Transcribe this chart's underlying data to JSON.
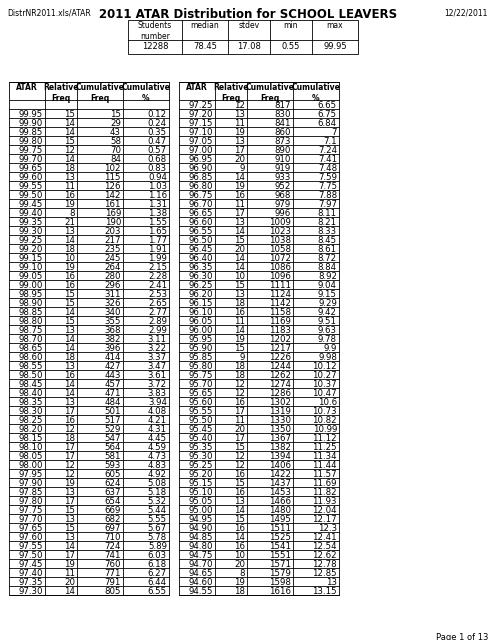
{
  "title": "2011 ATAR Distribution for SCHOOL LEAVERS",
  "left_header": "DistrNR2011.xls/ATAR",
  "right_header": "12/22/2011",
  "page_footer": "Page 1 of 13",
  "summary": {
    "students_number": "12288",
    "median": "78.45",
    "stdev": "17.08",
    "min": "0.55",
    "max": "99.95"
  },
  "rows": [
    [
      "",
      "",
      "",
      "",
      "97.25",
      "12",
      "817",
      "6.65"
    ],
    [
      "99.95",
      "15",
      "15",
      "0.12",
      "97.20",
      "13",
      "830",
      "6.75"
    ],
    [
      "99.90",
      "14",
      "29",
      "0.24",
      "97.15",
      "11",
      "841",
      "6.84"
    ],
    [
      "99.85",
      "14",
      "43",
      "0.35",
      "97.10",
      "19",
      "860",
      "7"
    ],
    [
      "99.80",
      "15",
      "58",
      "0.47",
      "97.05",
      "13",
      "873",
      "7.1"
    ],
    [
      "99.75",
      "12",
      "70",
      "0.57",
      "97.00",
      "17",
      "890",
      "7.24"
    ],
    [
      "99.70",
      "14",
      "84",
      "0.68",
      "96.95",
      "20",
      "910",
      "7.41"
    ],
    [
      "99.65",
      "18",
      "102",
      "0.83",
      "96.90",
      "9",
      "919",
      "7.48"
    ],
    [
      "99.60",
      "13",
      "115",
      "0.94",
      "96.85",
      "14",
      "933",
      "7.59"
    ],
    [
      "99.55",
      "11",
      "126",
      "1.03",
      "96.80",
      "19",
      "952",
      "7.75"
    ],
    [
      "99.50",
      "16",
      "142",
      "1.16",
      "96.75",
      "16",
      "968",
      "7.88"
    ],
    [
      "99.45",
      "19",
      "161",
      "1.31",
      "96.70",
      "11",
      "979",
      "7.97"
    ],
    [
      "99.40",
      "8",
      "169",
      "1.38",
      "96.65",
      "17",
      "996",
      "8.11"
    ],
    [
      "99.35",
      "21",
      "190",
      "1.55",
      "96.60",
      "13",
      "1009",
      "8.21"
    ],
    [
      "99.30",
      "13",
      "203",
      "1.65",
      "96.55",
      "14",
      "1023",
      "8.33"
    ],
    [
      "99.25",
      "14",
      "217",
      "1.77",
      "96.50",
      "15",
      "1038",
      "8.45"
    ],
    [
      "99.20",
      "18",
      "235",
      "1.91",
      "96.45",
      "20",
      "1058",
      "8.61"
    ],
    [
      "99.15",
      "10",
      "245",
      "1.99",
      "96.40",
      "14",
      "1072",
      "8.72"
    ],
    [
      "99.10",
      "19",
      "264",
      "2.15",
      "96.35",
      "14",
      "1086",
      "8.84"
    ],
    [
      "99.05",
      "16",
      "280",
      "2.28",
      "96.30",
      "10",
      "1096",
      "8.92"
    ],
    [
      "99.00",
      "16",
      "296",
      "2.41",
      "96.25",
      "15",
      "1111",
      "9.04"
    ],
    [
      "98.95",
      "15",
      "311",
      "2.53",
      "96.20",
      "13",
      "1124",
      "9.15"
    ],
    [
      "98.90",
      "15",
      "326",
      "2.65",
      "96.15",
      "18",
      "1142",
      "9.29"
    ],
    [
      "98.85",
      "14",
      "340",
      "2.77",
      "96.10",
      "16",
      "1158",
      "9.42"
    ],
    [
      "98.80",
      "15",
      "355",
      "2.89",
      "96.05",
      "11",
      "1169",
      "9.51"
    ],
    [
      "98.75",
      "13",
      "368",
      "2.99",
      "96.00",
      "14",
      "1183",
      "9.63"
    ],
    [
      "98.70",
      "14",
      "382",
      "3.11",
      "95.95",
      "19",
      "1202",
      "9.78"
    ],
    [
      "98.65",
      "14",
      "396",
      "3.22",
      "95.90",
      "15",
      "1217",
      "9.9"
    ],
    [
      "98.60",
      "18",
      "414",
      "3.37",
      "95.85",
      "9",
      "1226",
      "9.98"
    ],
    [
      "98.55",
      "13",
      "427",
      "3.47",
      "95.80",
      "18",
      "1244",
      "10.12"
    ],
    [
      "98.50",
      "16",
      "443",
      "3.61",
      "95.75",
      "18",
      "1262",
      "10.27"
    ],
    [
      "98.45",
      "14",
      "457",
      "3.72",
      "95.70",
      "12",
      "1274",
      "10.37"
    ],
    [
      "98.40",
      "14",
      "471",
      "3.83",
      "95.65",
      "12",
      "1286",
      "10.47"
    ],
    [
      "98.35",
      "13",
      "484",
      "3.94",
      "95.60",
      "16",
      "1302",
      "10.6"
    ],
    [
      "98.30",
      "17",
      "501",
      "4.08",
      "95.55",
      "17",
      "1319",
      "10.73"
    ],
    [
      "98.25",
      "16",
      "517",
      "4.21",
      "95.50",
      "11",
      "1330",
      "10.82"
    ],
    [
      "98.20",
      "12",
      "529",
      "4.31",
      "95.45",
      "20",
      "1350",
      "10.99"
    ],
    [
      "98.15",
      "18",
      "547",
      "4.45",
      "95.40",
      "17",
      "1367",
      "11.12"
    ],
    [
      "98.10",
      "17",
      "564",
      "4.59",
      "95.35",
      "15",
      "1382",
      "11.25"
    ],
    [
      "98.05",
      "17",
      "581",
      "4.73",
      "95.30",
      "12",
      "1394",
      "11.34"
    ],
    [
      "98.00",
      "12",
      "593",
      "4.83",
      "95.25",
      "12",
      "1406",
      "11.44"
    ],
    [
      "97.95",
      "12",
      "605",
      "4.92",
      "95.20",
      "16",
      "1422",
      "11.57"
    ],
    [
      "97.90",
      "19",
      "624",
      "5.08",
      "95.15",
      "15",
      "1437",
      "11.69"
    ],
    [
      "97.85",
      "13",
      "637",
      "5.18",
      "95.10",
      "16",
      "1453",
      "11.82"
    ],
    [
      "97.80",
      "17",
      "654",
      "5.32",
      "95.05",
      "13",
      "1466",
      "11.93"
    ],
    [
      "97.75",
      "15",
      "669",
      "5.44",
      "95.00",
      "14",
      "1480",
      "12.04"
    ],
    [
      "97.70",
      "13",
      "682",
      "5.55",
      "94.95",
      "15",
      "1495",
      "12.17"
    ],
    [
      "97.65",
      "15",
      "697",
      "5.67",
      "94.90",
      "16",
      "1511",
      "12.3"
    ],
    [
      "97.60",
      "13",
      "710",
      "5.78",
      "94.85",
      "14",
      "1525",
      "12.41"
    ],
    [
      "97.55",
      "14",
      "724",
      "5.89",
      "94.80",
      "16",
      "1541",
      "12.54"
    ],
    [
      "97.50",
      "17",
      "741",
      "6.03",
      "94.75",
      "10",
      "1551",
      "12.62"
    ],
    [
      "97.45",
      "19",
      "760",
      "6.18",
      "94.70",
      "20",
      "1571",
      "12.78"
    ],
    [
      "97.40",
      "11",
      "771",
      "6.27",
      "94.65",
      "8",
      "1579",
      "12.85"
    ],
    [
      "97.35",
      "20",
      "791",
      "6.44",
      "94.60",
      "19",
      "1598",
      "13"
    ],
    [
      "97.30",
      "14",
      "805",
      "6.55",
      "94.55",
      "18",
      "1616",
      "13.15"
    ]
  ],
  "background_color": "#ffffff"
}
